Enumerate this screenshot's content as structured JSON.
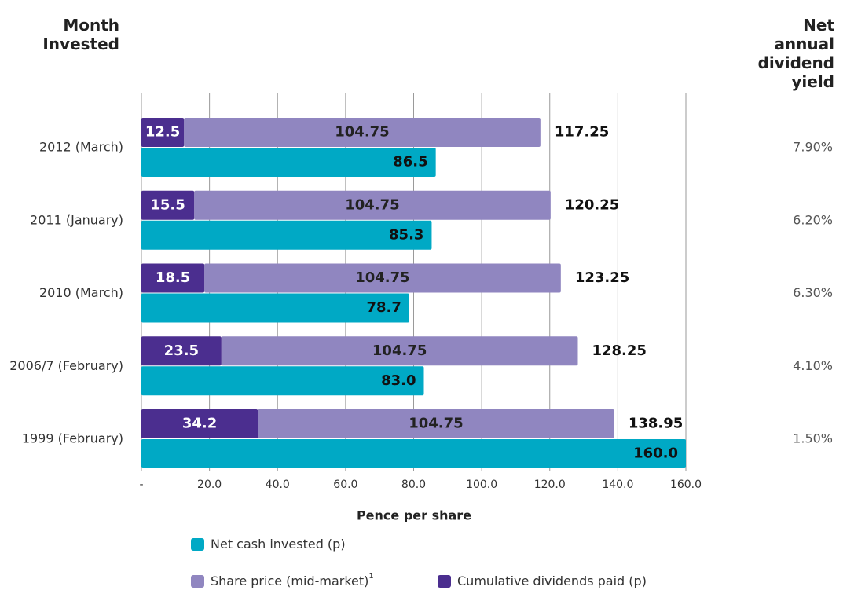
{
  "chart_data": {
    "type": "bar",
    "orientation": "horizontal",
    "y_label": "Month Invested",
    "x_label": "Pence per share",
    "categories": [
      "2012 (March)",
      "2011 (January)",
      "2010 (March)",
      "2006/7 (February)",
      "1999 (February)"
    ],
    "series": [
      {
        "name": "Net cash invested (p)",
        "color": "#00a9c5",
        "values": [
          86.5,
          85.3,
          78.7,
          83.0,
          160.0
        ],
        "value_labels": [
          "86.5",
          "85.3",
          "78.7",
          "83.0",
          "160.0"
        ]
      },
      {
        "name": "Share price (mid-market)",
        "note": "1",
        "color": "#9086c0",
        "values": [
          104.75,
          104.75,
          104.75,
          104.75,
          104.75
        ]
      },
      {
        "name": "Cumulative dividends paid (p)",
        "color": "#4b2e8f",
        "values": [
          12.5,
          15.5,
          18.5,
          23.5,
          34.2
        ]
      }
    ],
    "totals": [
      117.25,
      120.25,
      123.25,
      128.25,
      138.95
    ],
    "annual_yield": {
      "header": "Net annual dividend yield",
      "values": [
        7.9,
        6.2,
        6.3,
        4.1,
        1.5
      ],
      "value_labels": [
        "7.90%",
        "6.20%",
        "6.30%",
        "4.10%",
        "1.50%"
      ]
    },
    "xlim": [
      0,
      160
    ],
    "xticks": [
      {
        "value": 0,
        "label": "-"
      },
      {
        "value": 20,
        "label": "20.0"
      },
      {
        "value": 40,
        "label": "40.0"
      },
      {
        "value": 60,
        "label": "60.0"
      },
      {
        "value": 80,
        "label": "80.0"
      },
      {
        "value": 100,
        "label": "100.0"
      },
      {
        "value": 120,
        "label": "120.0"
      },
      {
        "value": 140,
        "label": "140.0"
      },
      {
        "value": 160,
        "label": "160.0"
      }
    ],
    "grid": true
  }
}
